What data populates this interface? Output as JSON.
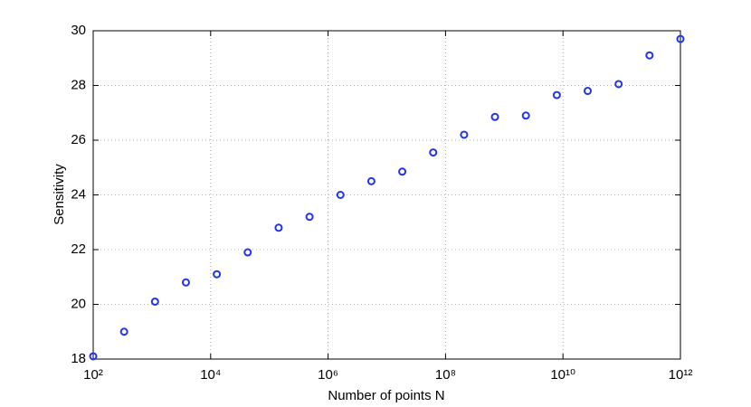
{
  "chart_data": {
    "type": "scatter",
    "xlabel": "Number of points N",
    "ylabel": "Sensitivity",
    "xscale": "log",
    "grid": true,
    "xlim": [
      100,
      1000000000000
    ],
    "ylim": [
      18,
      30
    ],
    "xticks": [
      {
        "value": 100,
        "label": "10²"
      },
      {
        "value": 10000,
        "label": "10⁴"
      },
      {
        "value": 1000000,
        "label": "10⁶"
      },
      {
        "value": 100000000,
        "label": "10⁸"
      },
      {
        "value": 10000000000,
        "label": "10¹⁰"
      },
      {
        "value": 1000000000000,
        "label": "10¹²"
      }
    ],
    "yticks": [
      18,
      20,
      22,
      24,
      26,
      28,
      30
    ],
    "series": [
      {
        "color": "#2233ee",
        "x": [
          100,
          336,
          1129,
          3793,
          12743,
          42813,
          143845,
          483293,
          1624000,
          5456000,
          18330000,
          61580000,
          206900000,
          695200000,
          2336000000,
          7848000000,
          26370000000,
          88590000000,
          297600000000,
          1000000000000
        ],
        "values": [
          18.1,
          19.0,
          20.1,
          20.8,
          21.1,
          21.9,
          22.8,
          23.2,
          24.0,
          24.5,
          24.85,
          25.55,
          26.2,
          26.85,
          26.9,
          27.65,
          27.8,
          28.05,
          29.1,
          29.7
        ]
      }
    ]
  }
}
